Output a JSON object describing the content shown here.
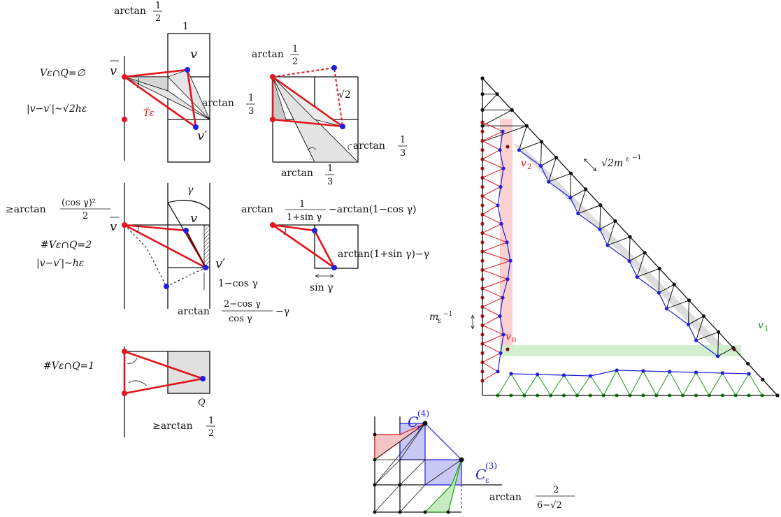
{
  "colors": {
    "red": "#e3141b",
    "blue": "#1e1ee0",
    "green": "#179a17",
    "grey": "#d6d6d6",
    "pink": "#f9c9c9",
    "lightgreen": "#cdeec8",
    "lightblue": "#c8c8f4"
  },
  "labels": {
    "arctan": "arctan",
    "half_num": "1",
    "half_den": "2",
    "third_num": "1",
    "third_den": "3",
    "one": "1",
    "v": "v",
    "vbar": "v",
    "vprime": "v′",
    "case1": "V",
    "case1_empty": "V",
    "case1_full": "Vε∩Q=∅",
    "dist1": "|v−v′|∼√2hε",
    "ttilde": "T̃ε",
    "sqrt2": "√2",
    "geq_arctan": "≥arctan",
    "cos_sq_num": "(cos γ)²",
    "gamma": "γ",
    "case2": "#Vε∩Q=2",
    "dist2": "|v−v′|∼hε",
    "one_minus_cos": "1−cos γ",
    "arctan_frac_num": "2−cos γ",
    "arctan_frac_den": "cos γ",
    "minus_gamma": "−γ",
    "top_num": "1",
    "top_den": "1+sin γ",
    "top_tail": "−arctan(1−cos γ)",
    "mid_right": "arctan(1+sin γ)−γ",
    "sin_gamma": "sin γ",
    "case3": "#Vε∩Q=1",
    "Q": "Q",
    "geq_arctan_half": "≥arctan",
    "m_inv": "m",
    "sqrt2m": "√2m",
    "v0": "v",
    "v0_sub": "0",
    "v1": "v",
    "v1_sub": "1",
    "v2": "v",
    "v2_sub": "2",
    "C4": "C",
    "C4_sup": "(4)",
    "C3": "C",
    "C3_sup": "(3)",
    "eps": "ε",
    "bottom_num": "2",
    "bottom_den": "6−√2"
  }
}
